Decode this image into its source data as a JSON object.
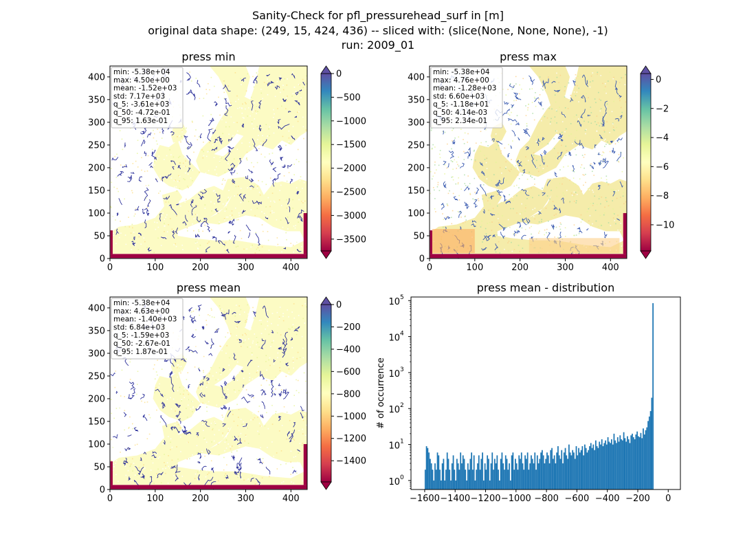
{
  "figure": {
    "title_lines": [
      "Sanity-Check for pfl_pressurehead_surf in [m]",
      "original data shape: (249, 15, 424, 436) -- sliced with: (slice(None, None, None), -1)",
      "run: 2009_01"
    ]
  },
  "chart_data": [
    {
      "type": "heatmap",
      "title": "press min",
      "xlim": [
        0,
        436
      ],
      "ylim": [
        0,
        424
      ],
      "xticks": [
        "0",
        "100",
        "200",
        "300",
        "400"
      ],
      "yticks": [
        "0",
        "50",
        "100",
        "150",
        "200",
        "250",
        "300",
        "350",
        "400"
      ],
      "colorbar": {
        "cmap": "Spectral",
        "vmin": -3750,
        "vmax": 0,
        "extend": "both",
        "ticks": [
          "0",
          "−500",
          "−1000",
          "−1500",
          "−2000",
          "−2500",
          "−3000",
          "−3500"
        ]
      },
      "stats": [
        "min: -5.38e+04",
        "max: 4.50e+00",
        "mean: -1.52e+03",
        "std: 7.17e+03",
        "q_5: -3.61e+03",
        "q_50: -4.72e-01",
        "q_95: 1.63e-01"
      ]
    },
    {
      "type": "heatmap",
      "title": "press max",
      "xlim": [
        0,
        436
      ],
      "ylim": [
        0,
        424
      ],
      "xticks": [
        "0",
        "100",
        "200",
        "300",
        "400"
      ],
      "yticks": [
        "0",
        "50",
        "100",
        "150",
        "200",
        "250",
        "300",
        "350",
        "400"
      ],
      "colorbar": {
        "cmap": "Spectral",
        "vmin": -11.8,
        "vmax": 0.4,
        "extend": "both",
        "ticks": [
          "0",
          "−2",
          "−4",
          "−6",
          "−8",
          "−10"
        ]
      },
      "stats": [
        "min: -5.38e+04",
        "max: 4.76e+00",
        "mean: -1.28e+03",
        "std: 6.60e+03",
        "q_5: -1.18e+01",
        "q_50: 4.14e-03",
        "q_95: 2.34e-01"
      ]
    },
    {
      "type": "heatmap",
      "title": "press mean",
      "xlim": [
        0,
        436
      ],
      "ylim": [
        0,
        424
      ],
      "xticks": [
        "0",
        "100",
        "200",
        "300",
        "400"
      ],
      "yticks": [
        "0",
        "50",
        "100",
        "150",
        "200",
        "250",
        "300",
        "350",
        "400"
      ],
      "colorbar": {
        "cmap": "Spectral",
        "vmin": -1590,
        "vmax": 0,
        "extend": "both",
        "ticks": [
          "0",
          "−200",
          "−400",
          "−600",
          "−800",
          "−1000",
          "−1200",
          "−1400"
        ]
      },
      "stats": [
        "min: -5.38e+04",
        "max: 4.63e+00",
        "mean: -1.40e+03",
        "std: 6.84e+03",
        "q_5: -1.59e+03",
        "q_50: -2.67e-01",
        "q_95: 1.87e-01"
      ]
    },
    {
      "type": "bar",
      "title": "press mean - distribution",
      "ylabel": "# of occurrence",
      "xlabel": "",
      "yscale": "log",
      "xlim": [
        -1690,
        80
      ],
      "ylim_decades": [
        -0.25,
        5.1
      ],
      "xticks": [
        "−1600",
        "−1400",
        "−1200",
        "−1000",
        "−800",
        "−600",
        "−400",
        "−200",
        "0"
      ],
      "yticks": [
        "10",
        "10",
        "10",
        "10",
        "10",
        "10"
      ],
      "ytick_exponents": [
        "0",
        "1",
        "2",
        "3",
        "4",
        "5"
      ],
      "color": "#1f77b4",
      "bin_start": -1600,
      "bin_width": 8,
      "counts": [
        2,
        9,
        8,
        6,
        4,
        3,
        2,
        1,
        3,
        2,
        6,
        5,
        2,
        1,
        3,
        4,
        1,
        2,
        6,
        4,
        2,
        1,
        3,
        5,
        2,
        1,
        4,
        3,
        2,
        6,
        3,
        5,
        4,
        2,
        1,
        3,
        2,
        4,
        6,
        2,
        5,
        1,
        2,
        3,
        5,
        2,
        4,
        6,
        1,
        3,
        2,
        5,
        4,
        1,
        3,
        6,
        2,
        4,
        3,
        5,
        2,
        1,
        4,
        6,
        3,
        2,
        5,
        4,
        2,
        3,
        1,
        5,
        6,
        2,
        4,
        3,
        2,
        5,
        4,
        6,
        3,
        2,
        5,
        4,
        6,
        2,
        3,
        5,
        4,
        3,
        6,
        2,
        5,
        3,
        4,
        6,
        7,
        5,
        3,
        4,
        6,
        5,
        3,
        7,
        8,
        4,
        5,
        3,
        6,
        9,
        5,
        4,
        7,
        3,
        6,
        8,
        5,
        4,
        10,
        6,
        5,
        7,
        6,
        4,
        9,
        5,
        8,
        6,
        7,
        9,
        5,
        10,
        8,
        6,
        7,
        9,
        11,
        8,
        10,
        7,
        13,
        9,
        8,
        12,
        10,
        14,
        9,
        11,
        13,
        10,
        16,
        12,
        11,
        14,
        10,
        20,
        13,
        11,
        16,
        12,
        18,
        14,
        13,
        22,
        15,
        12,
        17,
        14,
        11,
        18,
        20,
        16,
        14,
        19,
        23,
        17,
        16,
        21,
        15,
        28,
        19,
        25,
        30,
        45,
        60,
        85,
        200,
        85000
      ]
    }
  ]
}
